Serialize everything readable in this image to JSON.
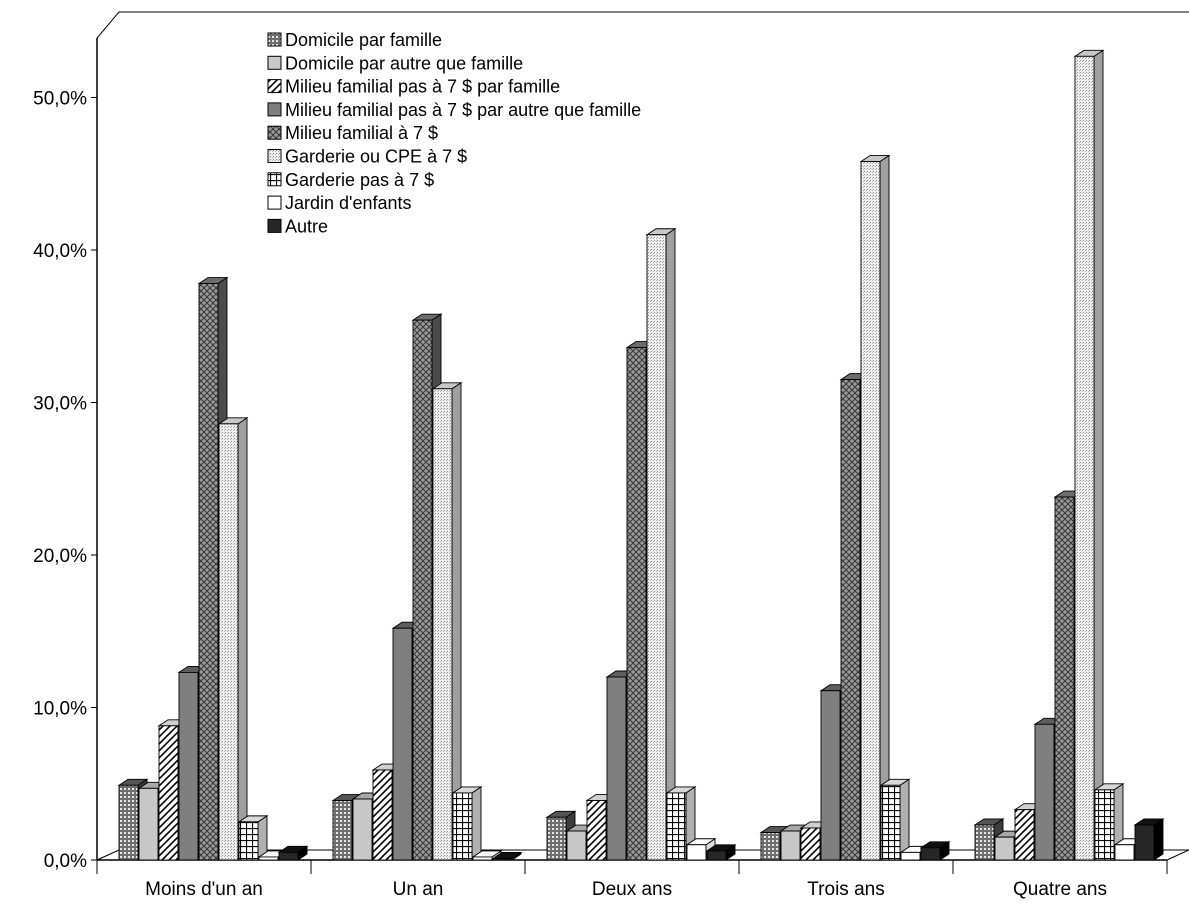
{
  "chart_data": {
    "type": "bar",
    "title": "",
    "xlabel": "",
    "ylabel": "",
    "ylim": [
      0,
      55
    ],
    "yticks": [
      0,
      10,
      20,
      30,
      40,
      50
    ],
    "ytick_labels": [
      "0,0%",
      "10,0%",
      "20,0%",
      "30,0%",
      "40,0%",
      "50,0%"
    ],
    "grid": false,
    "legend_position": "top-left",
    "categories": [
      "Moins d'un an",
      "Un an",
      "Deux ans",
      "Trois ans",
      "Quatre ans"
    ],
    "series": [
      {
        "name": "Domicile par famille",
        "pattern": "dots",
        "values": [
          4.9,
          3.9,
          2.8,
          1.8,
          2.3
        ]
      },
      {
        "name": "Domicile par autre que famille",
        "pattern": "light",
        "values": [
          4.7,
          4.0,
          1.9,
          1.9,
          1.5
        ]
      },
      {
        "name": "Milieu familial pas à 7 $ par famille",
        "pattern": "diag",
        "values": [
          8.8,
          5.9,
          3.9,
          2.1,
          3.3
        ]
      },
      {
        "name": "Milieu familial pas à 7 $ par autre que famille",
        "pattern": "dark",
        "values": [
          12.3,
          15.2,
          12.0,
          11.1,
          8.9
        ]
      },
      {
        "name": "Milieu familial à 7 $",
        "pattern": "cross",
        "values": [
          37.8,
          35.4,
          33.6,
          31.5,
          23.8
        ]
      },
      {
        "name": "Garderie ou CPE à 7 $",
        "pattern": "fine",
        "values": [
          28.6,
          30.9,
          41.0,
          45.8,
          52.7
        ]
      },
      {
        "name": "Garderie pas à 7 $",
        "pattern": "grid",
        "values": [
          2.5,
          4.4,
          4.4,
          4.9,
          4.6
        ]
      },
      {
        "name": "Jardin d'enfants",
        "pattern": "white",
        "values": [
          0.2,
          0.2,
          1.0,
          0.5,
          1.0
        ]
      },
      {
        "name": "Autre",
        "pattern": "black",
        "values": [
          0.5,
          0.1,
          0.6,
          0.8,
          2.3
        ]
      }
    ],
    "colors": {
      "light": "#c8c8c8",
      "dark": "#7f7f7f",
      "black": "#262626",
      "white": "#ffffff",
      "axis": "#000000"
    }
  }
}
